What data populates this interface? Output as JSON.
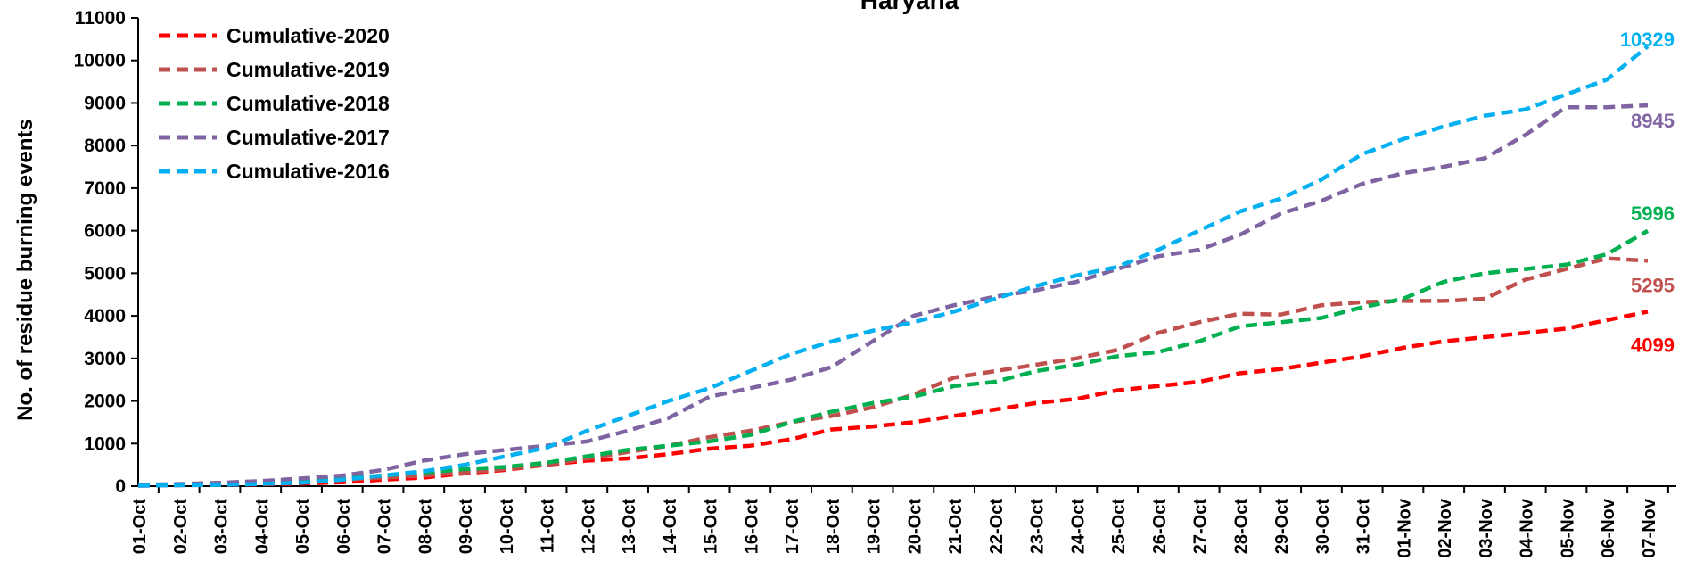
{
  "chart_data": {
    "type": "line",
    "title": "Haryana",
    "xlabel": "",
    "ylabel": "No. of residue burning events",
    "ylim": [
      0,
      11000
    ],
    "yticks": [
      0,
      1000,
      2000,
      3000,
      4000,
      5000,
      6000,
      7000,
      8000,
      9000,
      10000,
      11000
    ],
    "grid": false,
    "legend_position": "top-left",
    "categories": [
      "01-Oct",
      "02-Oct",
      "03-Oct",
      "04-Oct",
      "05-Oct",
      "06-Oct",
      "07-Oct",
      "08-Oct",
      "09-Oct",
      "10-Oct",
      "11-Oct",
      "12-Oct",
      "13-Oct",
      "14-Oct",
      "15-Oct",
      "16-Oct",
      "17-Oct",
      "18-Oct",
      "19-Oct",
      "20-Oct",
      "21-Oct",
      "22-Oct",
      "23-Oct",
      "24-Oct",
      "25-Oct",
      "26-Oct",
      "27-Oct",
      "28-Oct",
      "29-Oct",
      "30-Oct",
      "31-Oct",
      "01-Nov",
      "02-Nov",
      "03-Nov",
      "04-Nov",
      "05-Nov",
      "06-Nov",
      "07-Nov"
    ],
    "series": [
      {
        "name": "Cumulative-2020",
        "color": "#ff0000",
        "end_label": "4099",
        "values": [
          10,
          20,
          30,
          40,
          60,
          90,
          150,
          200,
          300,
          380,
          500,
          600,
          650,
          750,
          880,
          950,
          1100,
          1330,
          1400,
          1500,
          1650,
          1800,
          1950,
          2050,
          2250,
          2350,
          2450,
          2650,
          2750,
          2900,
          3050,
          3250,
          3400,
          3500,
          3600,
          3700,
          3900,
          4099
        ]
      },
      {
        "name": "Cumulative-2019",
        "color": "#c0504d",
        "end_label": "5295",
        "values": [
          20,
          30,
          40,
          60,
          100,
          150,
          200,
          250,
          320,
          400,
          500,
          650,
          800,
          950,
          1150,
          1300,
          1500,
          1650,
          1850,
          2150,
          2550,
          2700,
          2850,
          3000,
          3200,
          3600,
          3850,
          4050,
          4030,
          4250,
          4320,
          4350,
          4350,
          4400,
          4850,
          5100,
          5350,
          5295
        ]
      },
      {
        "name": "Cumulative-2018",
        "color": "#00b050",
        "end_label": "5996",
        "values": [
          20,
          40,
          60,
          90,
          130,
          180,
          250,
          320,
          400,
          450,
          550,
          700,
          850,
          950,
          1050,
          1200,
          1500,
          1750,
          1950,
          2100,
          2350,
          2450,
          2700,
          2850,
          3050,
          3150,
          3400,
          3750,
          3850,
          3950,
          4200,
          4400,
          4800,
          5000,
          5100,
          5200,
          5450,
          5996
        ]
      },
      {
        "name": "Cumulative-2017",
        "color": "#8064a2",
        "end_label": "8945",
        "values": [
          30,
          50,
          80,
          120,
          180,
          250,
          380,
          600,
          750,
          850,
          950,
          1050,
          1300,
          1600,
          2100,
          2300,
          2500,
          2800,
          3400,
          4000,
          4250,
          4450,
          4600,
          4800,
          5100,
          5400,
          5550,
          5900,
          6400,
          6700,
          7100,
          7350,
          7500,
          7700,
          8250,
          8900,
          8900,
          8945
        ]
      },
      {
        "name": "Cumulative-2016",
        "color": "#00b0f0",
        "end_label": "10329",
        "values": [
          10,
          20,
          30,
          50,
          80,
          150,
          250,
          350,
          500,
          700,
          900,
          1300,
          1650,
          2000,
          2300,
          2700,
          3100,
          3400,
          3650,
          3850,
          4100,
          4400,
          4700,
          4950,
          5150,
          5550,
          6000,
          6450,
          6750,
          7200,
          7800,
          8150,
          8450,
          8700,
          8850,
          9200,
          9550,
          10329
        ]
      }
    ]
  }
}
